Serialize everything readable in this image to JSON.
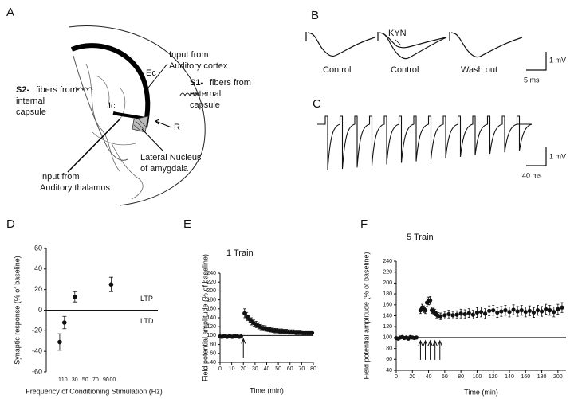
{
  "panel_labels": [
    "A",
    "B",
    "C",
    "D",
    "E",
    "F"
  ],
  "diagram": {
    "ec": "Ec",
    "ic": "Ic",
    "auditory_cortex": [
      "Input from",
      "Auditory cortex"
    ],
    "s2": {
      "tag": "S2-",
      "lines": [
        "fibers from",
        "internal",
        "capsule"
      ]
    },
    "s1": {
      "tag": "S1-",
      "lines": [
        "fibers from",
        "external",
        "capsule"
      ]
    },
    "r": "R",
    "lateral_nucleus": [
      "Lateral Nucleus",
      "of amygdala"
    ],
    "auditory_thalamus": [
      "Input from",
      "Auditory thalamus"
    ]
  },
  "traces_b": {
    "kyn": "KYN",
    "labels": [
      "Control",
      "Control",
      "Wash out"
    ],
    "scale_y": "1 mV",
    "scale_x": "5 ms"
  },
  "traces_c": {
    "scale_y": "1 mV",
    "scale_x": "40 ms"
  },
  "chart_data": [
    {
      "type": "scatter",
      "x_label": "Frequency of Conditioning Stimulation (Hz)",
      "y_label": "Synaptic response (% of baseline)",
      "x": [
        1,
        10,
        30,
        100
      ],
      "values": [
        -31,
        -12,
        13,
        25
      ],
      "errors": [
        8,
        6,
        5,
        7
      ],
      "color": "#111",
      "xlim": [
        -25,
        190
      ],
      "xticks": [
        1,
        10,
        30,
        50,
        70,
        90,
        100
      ],
      "ylim": [
        -60,
        60
      ],
      "yticks": [
        -60,
        -40,
        -20,
        0,
        20,
        40,
        60
      ],
      "reference_line": 0,
      "annotations": [
        "LTP",
        "LTD"
      ]
    },
    {
      "type": "scatter",
      "title": "1 Train",
      "x_label": "Time (min)",
      "y_label": "Field potential amplitude (% of baseline)",
      "x": [
        0,
        1.5,
        3,
        4.5,
        6,
        7.5,
        9,
        10.5,
        12,
        13.5,
        15,
        16.5,
        18,
        21,
        23,
        25,
        27,
        29,
        31,
        33,
        35,
        37,
        39,
        41,
        43,
        45,
        47,
        49,
        51,
        53,
        55,
        57,
        59,
        61,
        63,
        65,
        67,
        69,
        71,
        73,
        75,
        77,
        79
      ],
      "values": [
        98,
        97,
        98,
        99,
        97,
        98,
        98,
        97,
        99,
        98,
        98,
        97,
        98,
        150,
        143,
        137,
        132,
        128,
        125,
        122,
        119,
        117,
        116,
        114,
        113,
        112,
        111,
        111,
        110,
        110,
        109,
        109,
        108,
        108,
        108,
        107,
        107,
        107,
        106,
        106,
        106,
        106,
        106
      ],
      "errors": [
        null,
        null,
        null,
        null,
        null,
        null,
        null,
        null,
        null,
        null,
        null,
        null,
        null,
        10,
        9,
        8,
        8,
        7,
        7,
        7,
        6,
        6,
        6,
        5,
        5,
        5,
        5,
        5,
        5,
        5,
        5,
        5,
        5,
        5,
        5,
        5,
        5,
        5,
        5,
        5,
        5,
        5,
        5
      ],
      "color": "#111",
      "xlim": [
        0,
        80
      ],
      "xticks": [
        0,
        10,
        20,
        30,
        40,
        50,
        60,
        70,
        80
      ],
      "ylim": [
        40,
        240
      ],
      "yticks": [
        40,
        60,
        80,
        100,
        120,
        140,
        160,
        180,
        200,
        220,
        240
      ],
      "reference_line": 100,
      "stimulus_times": [
        20
      ]
    },
    {
      "type": "scatter",
      "title": "5 Train",
      "x_label": "Time (min)",
      "y_label": "Field potential amplitude (% of baseline)",
      "x": [
        0,
        2.5,
        5,
        7.5,
        10,
        12.5,
        15,
        17.5,
        20,
        22.5,
        25,
        30,
        32,
        34,
        36,
        38,
        40,
        42,
        44,
        46,
        48,
        50,
        52,
        55,
        60,
        65,
        70,
        75,
        80,
        85,
        90,
        95,
        100,
        105,
        110,
        115,
        120,
        125,
        130,
        135,
        140,
        145,
        150,
        155,
        160,
        165,
        170,
        175,
        180,
        185,
        190,
        195,
        200,
        205
      ],
      "values": [
        99,
        98,
        100,
        101,
        99,
        100,
        98,
        101,
        100,
        99,
        100,
        150,
        155,
        152,
        150,
        164,
        167,
        168,
        150,
        148,
        146,
        142,
        140,
        139,
        141,
        143,
        141,
        142,
        144,
        143,
        145,
        142,
        146,
        147,
        144,
        149,
        150,
        146,
        148,
        150,
        147,
        151,
        148,
        150,
        147,
        149,
        146,
        150,
        148,
        152,
        150,
        147,
        152,
        155
      ],
      "errors": [
        null,
        null,
        null,
        null,
        null,
        null,
        null,
        null,
        null,
        null,
        null,
        6,
        6,
        6,
        6,
        7,
        7,
        7,
        6,
        6,
        6,
        6,
        6,
        6,
        7,
        7,
        7,
        7,
        8,
        8,
        8,
        8,
        9,
        9,
        9,
        9,
        9,
        9,
        9,
        9,
        9,
        9,
        9,
        9,
        9,
        9,
        9,
        9,
        9,
        9,
        9,
        9,
        9,
        9
      ],
      "color": "#111",
      "xlim": [
        0,
        210
      ],
      "xticks": [
        0,
        20,
        40,
        60,
        80,
        100,
        120,
        140,
        160,
        180,
        200
      ],
      "ylim": [
        40,
        240
      ],
      "yticks": [
        40,
        60,
        80,
        100,
        120,
        140,
        160,
        180,
        200,
        220,
        240
      ],
      "reference_line": 100,
      "stimulus_times": [
        30,
        36,
        42,
        48,
        54
      ]
    }
  ]
}
